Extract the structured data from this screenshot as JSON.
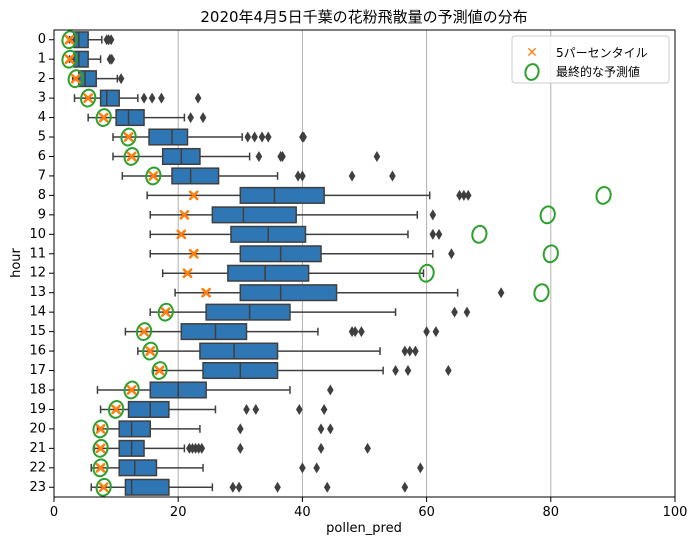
{
  "chart_data": {
    "type": "box",
    "orientation": "horizontal",
    "title": "2020年4月5日千葉の花粉飛散量の予測値の分布",
    "xlabel": "pollen_pred",
    "ylabel": "hour",
    "xlim": [
      0,
      100
    ],
    "xticks": [
      0,
      20,
      40,
      60,
      80,
      100
    ],
    "grid": "x",
    "legend": {
      "position": "top-right",
      "entries": [
        "5パーセンタイル",
        "最終的な予測値"
      ]
    },
    "colors": {
      "box": "#2f77b4",
      "percentile": "#ff7f0e",
      "final": "#2ca02c",
      "outlier": "#3f3f3f",
      "grid": "#b0b0b0"
    },
    "categories": [
      "0",
      "1",
      "2",
      "3",
      "4",
      "5",
      "6",
      "7",
      "8",
      "9",
      "10",
      "11",
      "12",
      "13",
      "14",
      "15",
      "16",
      "17",
      "18",
      "19",
      "20",
      "21",
      "22",
      "23"
    ],
    "boxes": [
      {
        "whislo": 2.5,
        "q1": 3.2,
        "med": 4.0,
        "q3": 5.5,
        "whishi": 7.7,
        "fliers": [
          8.5,
          8.8,
          9.2
        ]
      },
      {
        "whislo": 2.5,
        "q1": 3.2,
        "med": 4.0,
        "q3": 5.5,
        "whishi": 7.5,
        "fliers": [
          9.0,
          9.3
        ]
      },
      {
        "whislo": 3.0,
        "q1": 4.0,
        "med": 5.0,
        "q3": 6.8,
        "whishi": 10.2,
        "fliers": [
          10.8
        ]
      },
      {
        "whislo": 3.3,
        "q1": 7.5,
        "med": 8.5,
        "q3": 10.5,
        "whishi": 13.5,
        "fliers": [
          14.5,
          15.8,
          17.3,
          23.2
        ]
      },
      {
        "whislo": 5.5,
        "q1": 10.0,
        "med": 12.0,
        "q3": 14.5,
        "whishi": 21.0,
        "fliers": [
          22.0,
          24.0
        ]
      },
      {
        "whislo": 9.5,
        "q1": 15.3,
        "med": 19.0,
        "q3": 21.5,
        "whishi": 30.3,
        "fliers": [
          31.2,
          32.3,
          33.5,
          34.5,
          40.0,
          40.2
        ]
      },
      {
        "whislo": 9.5,
        "q1": 17.5,
        "med": 20.5,
        "q3": 23.5,
        "whishi": 31.5,
        "fliers": [
          33.0,
          36.5,
          36.8,
          52.0
        ]
      },
      {
        "whislo": 11.0,
        "q1": 19.0,
        "med": 22.0,
        "q3": 26.5,
        "whishi": 36.0,
        "fliers": [
          39.3,
          40.0,
          48.0,
          54.5
        ]
      },
      {
        "whislo": 15.0,
        "q1": 30.0,
        "med": 35.5,
        "q3": 43.5,
        "whishi": 60.5,
        "fliers": [
          65.3,
          66.0,
          66.7
        ]
      },
      {
        "whislo": 15.5,
        "q1": 25.5,
        "med": 30.5,
        "q3": 39.0,
        "whishi": 58.5,
        "fliers": [
          61.0
        ]
      },
      {
        "whislo": 15.5,
        "q1": 28.5,
        "med": 34.5,
        "q3": 40.5,
        "whishi": 57.0,
        "fliers": [
          61.0,
          62.0
        ]
      },
      {
        "whislo": 15.5,
        "q1": 30.0,
        "med": 36.5,
        "q3": 43.0,
        "whishi": 61.0,
        "fliers": [
          64.0
        ]
      },
      {
        "whislo": 17.5,
        "q1": 28.0,
        "med": 34.0,
        "q3": 41.0,
        "whishi": 59.5,
        "fliers": []
      },
      {
        "whislo": 19.5,
        "q1": 30.0,
        "med": 36.5,
        "q3": 45.5,
        "whishi": 65.0,
        "fliers": [
          72.0
        ]
      },
      {
        "whislo": 15.5,
        "q1": 24.5,
        "med": 31.5,
        "q3": 38.0,
        "whishi": 55.0,
        "fliers": [
          64.5,
          66.5
        ]
      },
      {
        "whislo": 11.5,
        "q1": 20.5,
        "med": 26.0,
        "q3": 31.0,
        "whishi": 42.5,
        "fliers": [
          48.0,
          48.5,
          49.5,
          60.0,
          61.5
        ]
      },
      {
        "whislo": 13.5,
        "q1": 23.5,
        "med": 29.0,
        "q3": 36.0,
        "whishi": 52.5,
        "fliers": [
          56.5,
          57.3,
          58.2
        ]
      },
      {
        "whislo": 16.0,
        "q1": 24.0,
        "med": 30.0,
        "q3": 36.0,
        "whishi": 53.0,
        "fliers": [
          55.0,
          57.0,
          63.5
        ]
      },
      {
        "whislo": 7.0,
        "q1": 15.5,
        "med": 20.0,
        "q3": 24.5,
        "whishi": 38.0,
        "fliers": [
          44.5
        ]
      },
      {
        "whislo": 7.5,
        "q1": 12.0,
        "med": 15.5,
        "q3": 18.5,
        "whishi": 26.0,
        "fliers": [
          31.0,
          32.5,
          39.5,
          43.5
        ]
      },
      {
        "whislo": 7.0,
        "q1": 10.5,
        "med": 12.5,
        "q3": 15.5,
        "whishi": 23.5,
        "fliers": [
          30.0,
          43.0,
          44.5
        ]
      },
      {
        "whislo": 6.5,
        "q1": 10.5,
        "med": 12.5,
        "q3": 14.5,
        "whishi": 21.0,
        "fliers": [
          21.8,
          22.3,
          22.8,
          23.3,
          23.8,
          30.0,
          43.0,
          50.5
        ]
      },
      {
        "whislo": 6.0,
        "q1": 10.5,
        "med": 13.0,
        "q3": 16.5,
        "whishi": 24.0,
        "fliers": [
          40.0,
          42.3,
          59.0
        ]
      },
      {
        "whislo": 6.0,
        "q1": 11.5,
        "med": 12.5,
        "q3": 18.5,
        "whishi": 25.5,
        "fliers": [
          28.8,
          29.8,
          36.0,
          44.0,
          56.5
        ]
      }
    ],
    "percentile_5": [
      2.5,
      2.5,
      3.5,
      5.5,
      8.0,
      12.0,
      12.5,
      16.0,
      22.5,
      21.0,
      20.5,
      22.5,
      21.5,
      24.5,
      18.0,
      14.5,
      15.5,
      17.0,
      12.5,
      10.0,
      7.5,
      7.5,
      7.5,
      8.0
    ],
    "final_prediction": [
      2.5,
      2.5,
      3.5,
      5.5,
      8.0,
      12.0,
      12.5,
      16.0,
      88.5,
      79.5,
      68.5,
      80.0,
      60.0,
      78.5,
      18.0,
      14.5,
      15.5,
      17.0,
      12.5,
      10.0,
      7.5,
      7.5,
      7.5,
      8.0
    ]
  }
}
